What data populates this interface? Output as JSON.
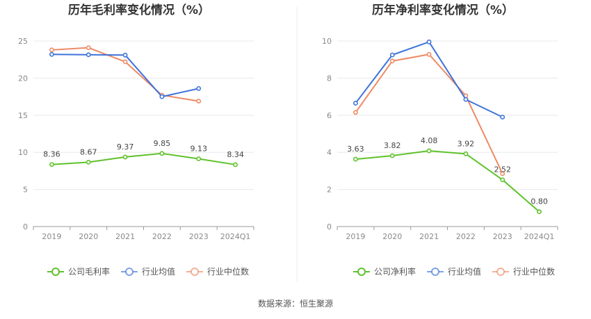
{
  "source_label": "数据来源：恒生聚源",
  "colors": {
    "company": "#5ec22a",
    "avg": "#3f73d9",
    "median": "#ee8a64"
  },
  "chart_data": [
    {
      "type": "line",
      "title": "历年毛利率变化情况（%）",
      "categories": [
        "2019",
        "2020",
        "2021",
        "2022",
        "2023",
        "2024Q1"
      ],
      "ylim": [
        0,
        25
      ],
      "yticks": [
        0,
        5,
        10,
        15,
        20,
        25
      ],
      "grid": true,
      "legend_position": "bottom",
      "series": [
        {
          "name": "公司毛利率",
          "role": "company",
          "values": [
            8.36,
            8.67,
            9.37,
            9.85,
            9.13,
            8.34
          ],
          "labels": [
            "8.36",
            "8.67",
            "9.37",
            "9.85",
            "9.13",
            "8.34"
          ]
        },
        {
          "name": "行业均值",
          "role": "avg",
          "values": [
            23.2,
            23.15,
            23.1,
            17.5,
            18.6,
            null
          ]
        },
        {
          "name": "行业中位数",
          "role": "median",
          "values": [
            23.8,
            24.1,
            22.2,
            17.7,
            16.9,
            null
          ]
        }
      ]
    },
    {
      "type": "line",
      "title": "历年净利率变化情况（%）",
      "categories": [
        "2019",
        "2020",
        "2021",
        "2022",
        "2023",
        "2024Q1"
      ],
      "ylim": [
        0,
        10
      ],
      "yticks": [
        0,
        2,
        4,
        6,
        8,
        10
      ],
      "grid": true,
      "legend_position": "bottom",
      "series": [
        {
          "name": "公司净利率",
          "role": "company",
          "values": [
            3.63,
            3.82,
            4.08,
            3.92,
            2.52,
            0.8
          ],
          "labels": [
            "3.63",
            "3.82",
            "4.08",
            "3.92",
            "2.52",
            "0.80"
          ]
        },
        {
          "name": "行业均值",
          "role": "avg",
          "values": [
            6.65,
            9.25,
            9.95,
            6.85,
            5.9,
            null
          ]
        },
        {
          "name": "行业中位数",
          "role": "median",
          "values": [
            6.15,
            8.92,
            9.28,
            7.05,
            2.85,
            null
          ]
        }
      ]
    }
  ]
}
